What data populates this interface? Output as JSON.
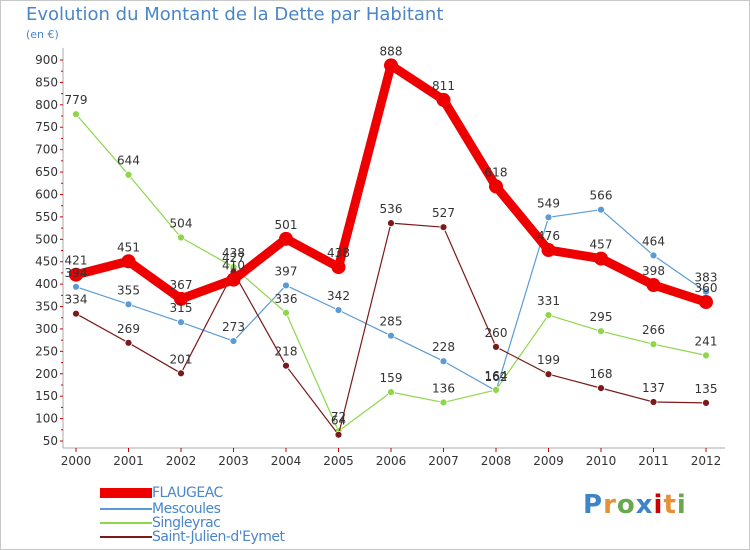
{
  "title": "Evolution du Montant de la Dette par Habitant",
  "subtitle": "(en €)",
  "logo": {
    "text": "Proxiti",
    "colors": [
      "#3d85c6",
      "#e69138",
      "#6aa84f",
      "#3d85c6",
      "#cc0000",
      "#e69138",
      "#6aa84f"
    ]
  },
  "chart_data": {
    "type": "line",
    "x": [
      "2000",
      "2001",
      "2002",
      "2003",
      "2004",
      "2005",
      "2006",
      "2007",
      "2008",
      "2009",
      "2010",
      "2011",
      "2012"
    ],
    "ylim": [
      50,
      900
    ],
    "yticks": [
      50,
      100,
      150,
      200,
      250,
      300,
      350,
      400,
      450,
      500,
      550,
      600,
      650,
      700,
      750,
      800,
      850,
      900
    ],
    "grid": false,
    "legend_position": "bottom-left",
    "series": [
      {
        "name": "FLAUGEAC",
        "color": "#ee0000",
        "values": [
          421,
          451,
          367,
          410,
          501,
          438,
          888,
          811,
          618,
          476,
          457,
          398,
          360
        ],
        "labels": [
          "421",
          "451",
          "367",
          "410",
          "501",
          "438",
          "888",
          "811",
          "618",
          "476",
          "457",
          "398",
          "360"
        ]
      },
      {
        "name": "Mescoules",
        "color": "#5b9bd5",
        "values": [
          394,
          355,
          315,
          273,
          397,
          342,
          285,
          228,
          162,
          549,
          566,
          464,
          383
        ],
        "labels": [
          "394",
          "355",
          "315",
          "273",
          "397",
          "342",
          "285",
          "228",
          "162",
          "549",
          "566",
          "464",
          "383"
        ]
      },
      {
        "name": "Singleyrac",
        "color": "#8fd64b",
        "values": [
          779,
          644,
          504,
          438,
          336,
          72,
          159,
          136,
          164,
          331,
          295,
          266,
          241
        ],
        "labels": [
          "779",
          "644",
          "504",
          "438",
          "336",
          "72",
          "159",
          "136",
          "164",
          "331",
          "295",
          "266",
          "241"
        ]
      },
      {
        "name": "Saint-Julien-d'Eymet",
        "color": "#7a1a1a",
        "values": [
          334,
          269,
          201,
          427,
          218,
          64,
          536,
          527,
          260,
          199,
          168,
          137,
          135
        ],
        "labels": [
          "334",
          "269",
          "201",
          "427",
          "218",
          "64",
          "536",
          "527",
          "260",
          "199",
          "168",
          "137",
          "135"
        ]
      }
    ]
  }
}
